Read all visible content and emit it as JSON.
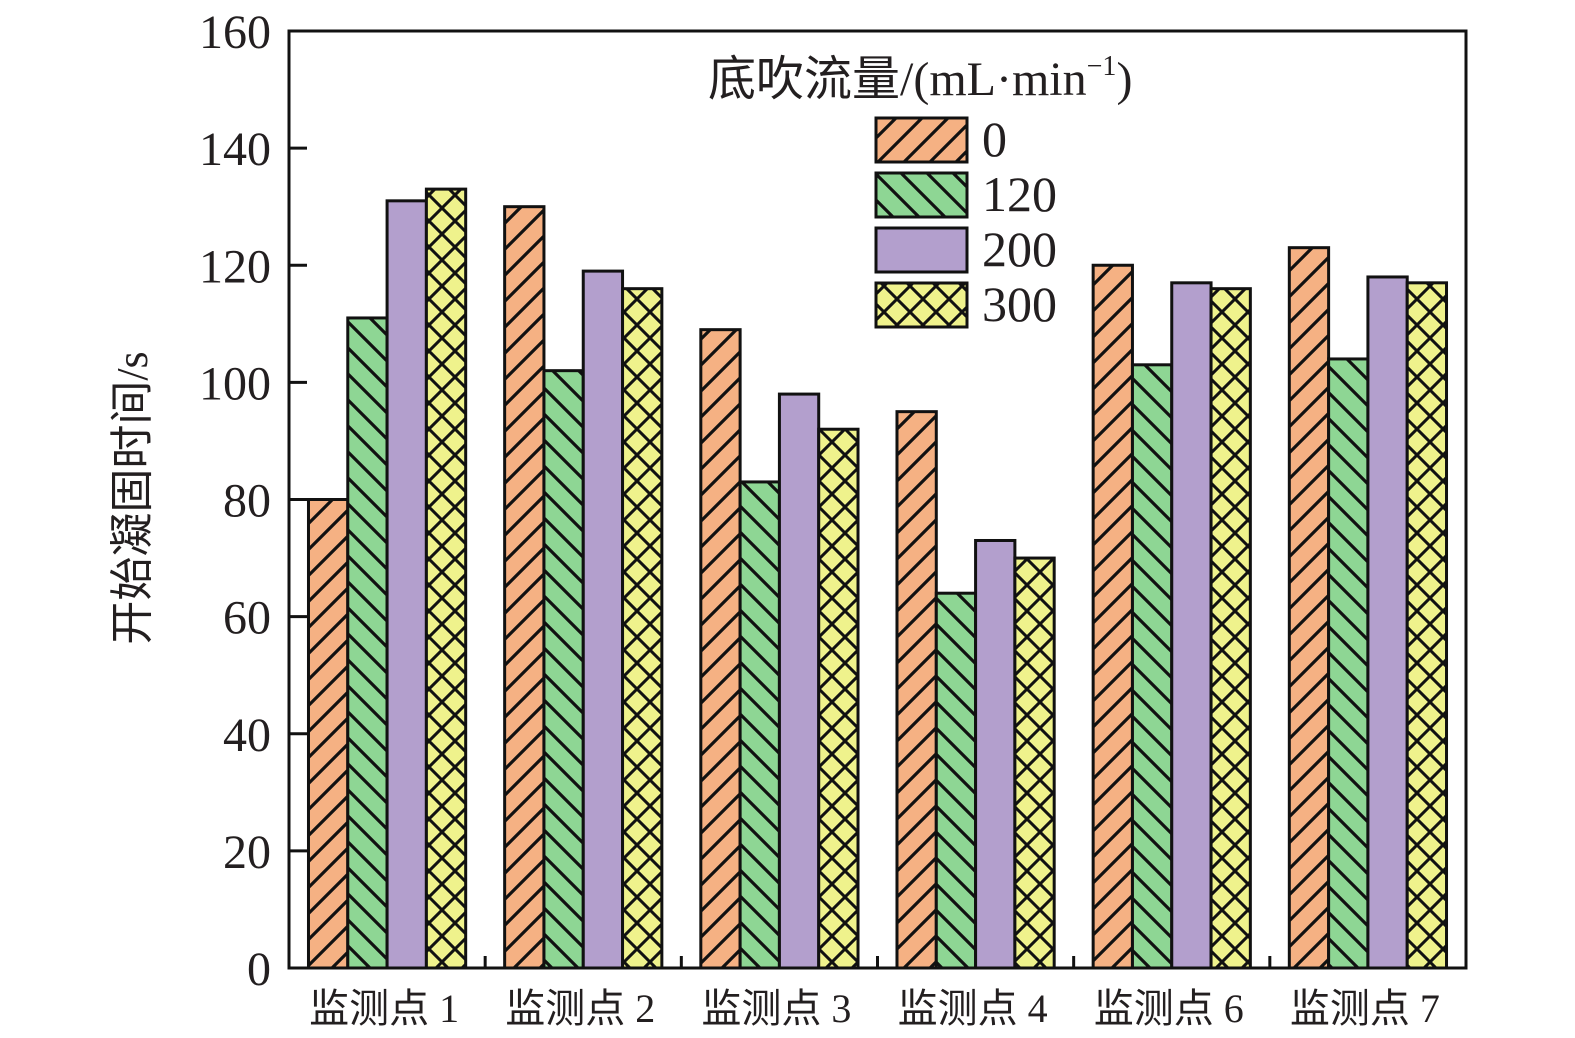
{
  "chart_data": {
    "type": "bar",
    "title": "",
    "xlabel": "",
    "ylabel": "开始凝固时间/s",
    "ylim": [
      0,
      160
    ],
    "yticks": [
      0,
      20,
      40,
      60,
      80,
      100,
      120,
      140,
      160
    ],
    "grid": false,
    "categories": [
      "监测点 1",
      "监测点 2",
      "监测点 3",
      "监测点 4",
      "监测点 6",
      "监测点 7"
    ],
    "legend": {
      "title": "底吹流量/(mL·min",
      "title_sup": "−1",
      "title_close": ")",
      "placement": "top-right"
    },
    "series": [
      {
        "name": "0",
        "color": "#F5B183",
        "hatch": "forward-diagonal",
        "values": [
          80,
          130,
          109,
          95,
          120,
          123
        ]
      },
      {
        "name": "120",
        "color": "#8ED694",
        "hatch": "backward-diagonal",
        "values": [
          111,
          102,
          83,
          64,
          103,
          104
        ]
      },
      {
        "name": "200",
        "color": "#B39FCD",
        "hatch": "none",
        "values": [
          131,
          119,
          98,
          73,
          117,
          118
        ]
      },
      {
        "name": "300",
        "color": "#EFF28C",
        "hatch": "cross-diagonal",
        "values": [
          133,
          116,
          92,
          70,
          116,
          117
        ]
      }
    ]
  }
}
